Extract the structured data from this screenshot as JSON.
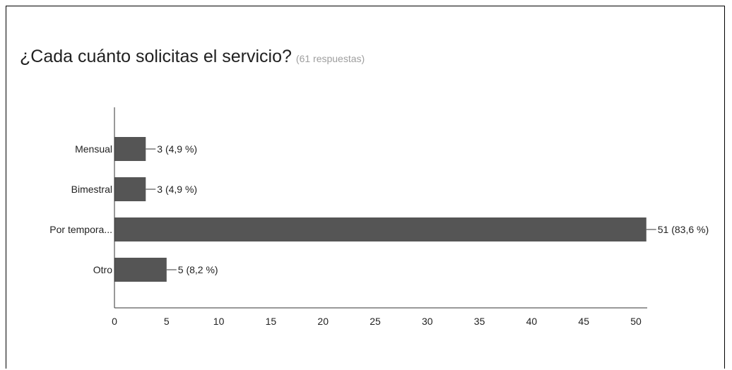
{
  "title": "¿Cada cuánto solicitas el servicio?",
  "subtitle": "(61 respuestas)",
  "chart_data": {
    "type": "bar",
    "orientation": "horizontal",
    "categories": [
      "Mensual",
      "Bimestral",
      "Por tempora...",
      "Otro"
    ],
    "values": [
      3,
      3,
      51,
      5
    ],
    "value_labels": [
      "3 (4,9 %)",
      "3 (4,9 %)",
      "51 (83,6 %)",
      "5 (8,2 %)"
    ],
    "xticks": [
      0,
      5,
      10,
      15,
      20,
      25,
      30,
      35,
      40,
      45,
      50
    ],
    "xlim": [
      0,
      51
    ],
    "grid": false,
    "colors": {
      "bar": "#555555",
      "axis": "#333333",
      "text": "#222222"
    }
  }
}
